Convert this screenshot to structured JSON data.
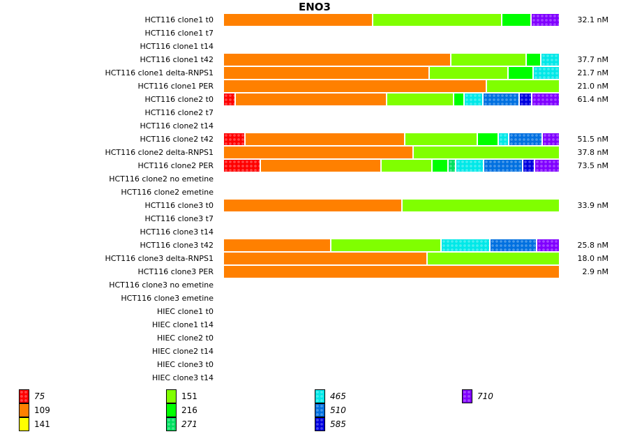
{
  "chart_data": {
    "type": "bar",
    "orientation": "horizontal",
    "stacked": true,
    "normalized": true,
    "title": "ENO3",
    "xlabel": "",
    "ylabel": "",
    "grid": false,
    "legend_position": "bottom",
    "legend": [
      {
        "key": "75",
        "color": "#ff0000",
        "patterned": true,
        "italic": true
      },
      {
        "key": "109",
        "color": "#ff8000",
        "patterned": false,
        "italic": false
      },
      {
        "key": "141",
        "color": "#ffff00",
        "patterned": false,
        "italic": false
      },
      {
        "key": "151",
        "color": "#80ff00",
        "patterned": false,
        "italic": false
      },
      {
        "key": "216",
        "color": "#00ff00",
        "patterned": false,
        "italic": false
      },
      {
        "key": "271",
        "color": "#00e060",
        "patterned": true,
        "italic": true
      },
      {
        "key": "465",
        "color": "#00e8e8",
        "patterned": true,
        "italic": true
      },
      {
        "key": "510",
        "color": "#0070e0",
        "patterned": true,
        "italic": true
      },
      {
        "key": "585",
        "color": "#0000e0",
        "patterned": true,
        "italic": true
      },
      {
        "key": "710",
        "color": "#8000ff",
        "patterned": true,
        "italic": true
      }
    ],
    "categories": [
      "HCT116 clone1 t0",
      "HCT116 clone1 t7",
      "HCT116 clone1 t14",
      "HCT116 clone1 t42",
      "HCT116 clone1 delta-RNPS1",
      "HCT116 clone1 PER",
      "HCT116 clone2 t0",
      "HCT116 clone2 t7",
      "HCT116 clone2 t14",
      "HCT116 clone2 t42",
      "HCT116 clone2 delta-RNPS1",
      "HCT116 clone2 PER",
      "HCT116 clone2 no emetine",
      "HCT116 clone2 emetine",
      "HCT116 clone3 t0",
      "HCT116 clone3 t7",
      "HCT116 clone3 t14",
      "HCT116 clone3 t42",
      "HCT116 clone3 delta-RNPS1",
      "HCT116 clone3 PER",
      "HCT116 clone3 no emetine",
      "HCT116 clone3 emetine",
      "HIEC clone1 t0",
      "HIEC clone1 t14",
      "HIEC clone2 t0",
      "HIEC clone2 t14",
      "HIEC clone3 t0",
      "HIEC clone3 t14"
    ],
    "rows": [
      {
        "total": "32.1 nM",
        "segments": [
          {
            "key": "109",
            "fraction": 0.446
          },
          {
            "key": "151",
            "fraction": 0.385
          },
          {
            "key": "216",
            "fraction": 0.088
          },
          {
            "key": "710",
            "fraction": 0.081
          }
        ]
      },
      {
        "total": "",
        "segments": []
      },
      {
        "total": "",
        "segments": []
      },
      {
        "total": "37.7 nM",
        "segments": [
          {
            "key": "109",
            "fraction": 0.679
          },
          {
            "key": "151",
            "fraction": 0.225
          },
          {
            "key": "216",
            "fraction": 0.044
          },
          {
            "key": "465",
            "fraction": 0.052
          }
        ]
      },
      {
        "total": "21.7 nM",
        "segments": [
          {
            "key": "109",
            "fraction": 0.615
          },
          {
            "key": "151",
            "fraction": 0.235
          },
          {
            "key": "216",
            "fraction": 0.075
          },
          {
            "key": "465",
            "fraction": 0.075
          }
        ]
      },
      {
        "total": "21.0 nM",
        "segments": [
          {
            "key": "109",
            "fraction": 0.785
          },
          {
            "key": "151",
            "fraction": 0.215
          }
        ]
      },
      {
        "total": "61.4 nM",
        "segments": [
          {
            "key": "75",
            "fraction": 0.035
          },
          {
            "key": "109",
            "fraction": 0.452
          },
          {
            "key": "151",
            "fraction": 0.2
          },
          {
            "key": "216",
            "fraction": 0.031
          },
          {
            "key": "465",
            "fraction": 0.056
          },
          {
            "key": "510",
            "fraction": 0.11
          },
          {
            "key": "585",
            "fraction": 0.037
          },
          {
            "key": "710",
            "fraction": 0.079
          }
        ]
      },
      {
        "total": "",
        "segments": []
      },
      {
        "total": "",
        "segments": []
      },
      {
        "total": "51.5 nM",
        "segments": [
          {
            "key": "75",
            "fraction": 0.064
          },
          {
            "key": "109",
            "fraction": 0.477
          },
          {
            "key": "151",
            "fraction": 0.217
          },
          {
            "key": "216",
            "fraction": 0.062
          },
          {
            "key": "465",
            "fraction": 0.033
          },
          {
            "key": "510",
            "fraction": 0.1
          },
          {
            "key": "710",
            "fraction": 0.047
          }
        ]
      },
      {
        "total": "37.8 nM",
        "segments": [
          {
            "key": "109",
            "fraction": 0.567
          },
          {
            "key": "151",
            "fraction": 0.433
          }
        ]
      },
      {
        "total": "73.5 nM",
        "segments": [
          {
            "key": "75",
            "fraction": 0.11
          },
          {
            "key": "109",
            "fraction": 0.361
          },
          {
            "key": "151",
            "fraction": 0.152
          },
          {
            "key": "216",
            "fraction": 0.048
          },
          {
            "key": "271",
            "fraction": 0.023
          },
          {
            "key": "465",
            "fraction": 0.083
          },
          {
            "key": "510",
            "fraction": 0.117
          },
          {
            "key": "585",
            "fraction": 0.035
          },
          {
            "key": "710",
            "fraction": 0.071
          }
        ]
      },
      {
        "total": "",
        "segments": []
      },
      {
        "total": "",
        "segments": []
      },
      {
        "total": "33.9 nM",
        "segments": [
          {
            "key": "109",
            "fraction": 0.533
          },
          {
            "key": "151",
            "fraction": 0.467
          }
        ]
      },
      {
        "total": "",
        "segments": []
      },
      {
        "total": "",
        "segments": []
      },
      {
        "total": "25.8 nM",
        "segments": [
          {
            "key": "109",
            "fraction": 0.321
          },
          {
            "key": "151",
            "fraction": 0.33
          },
          {
            "key": "465",
            "fraction": 0.144
          },
          {
            "key": "510",
            "fraction": 0.14
          },
          {
            "key": "710",
            "fraction": 0.065
          }
        ]
      },
      {
        "total": "18.0 nM",
        "segments": [
          {
            "key": "109",
            "fraction": 0.608
          },
          {
            "key": "151",
            "fraction": 0.392
          }
        ]
      },
      {
        "total": "2.9 nM",
        "segments": [
          {
            "key": "109",
            "fraction": 1.0
          }
        ]
      },
      {
        "total": "",
        "segments": []
      },
      {
        "total": "",
        "segments": []
      },
      {
        "total": "",
        "segments": []
      },
      {
        "total": "",
        "segments": []
      },
      {
        "total": "",
        "segments": []
      },
      {
        "total": "",
        "segments": []
      },
      {
        "total": "",
        "segments": []
      },
      {
        "total": "",
        "segments": []
      }
    ]
  }
}
